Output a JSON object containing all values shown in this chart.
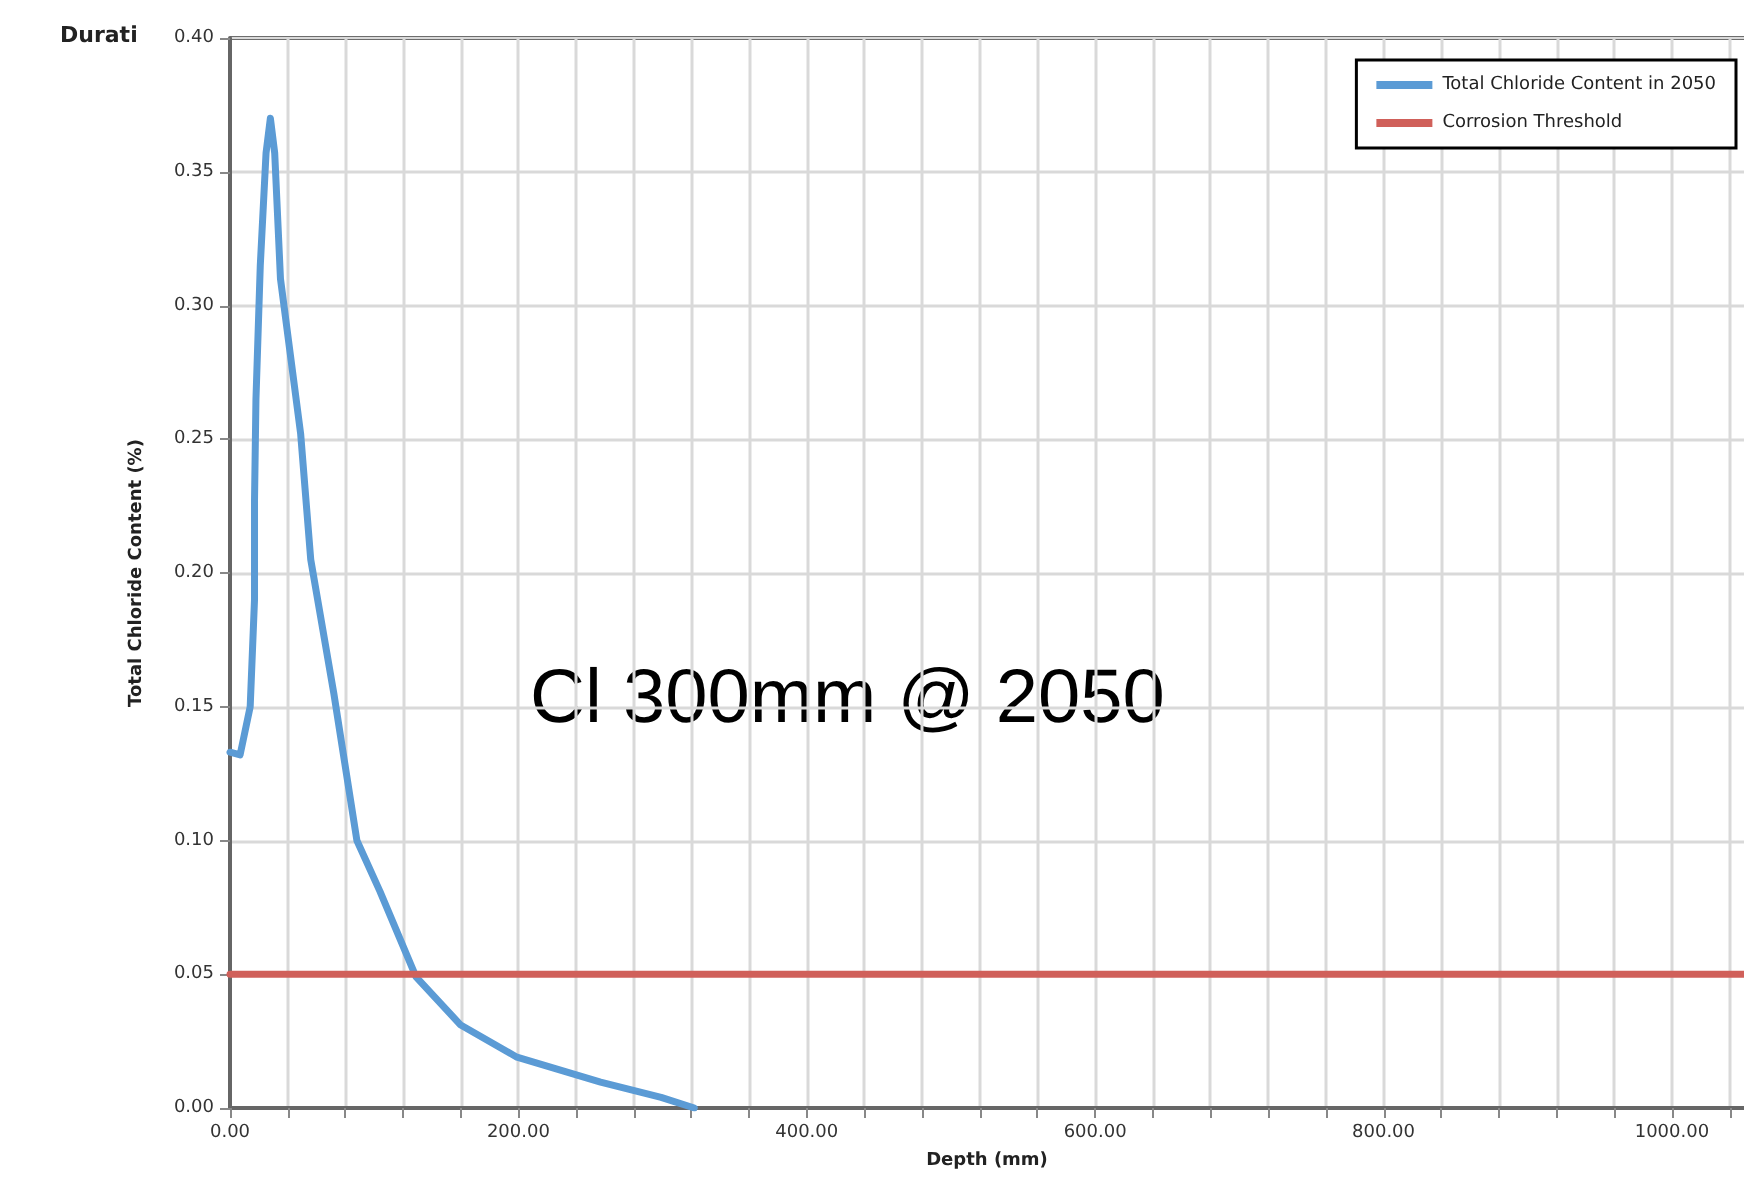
{
  "chart_data": {
    "type": "line",
    "xlabel": "Depth (mm)",
    "ylabel": "Total Chloride Content (%)",
    "xlim": [
      0,
      1050
    ],
    "xticks": [
      {
        "value": 0,
        "label": "0.00"
      },
      {
        "value": 40,
        "label": null
      },
      {
        "value": 80,
        "label": null
      },
      {
        "value": 120,
        "label": null
      },
      {
        "value": 160,
        "label": null
      },
      {
        "value": 200,
        "label": "200.00"
      },
      {
        "value": 240,
        "label": null
      },
      {
        "value": 280,
        "label": null
      },
      {
        "value": 320,
        "label": null
      },
      {
        "value": 360,
        "label": null
      },
      {
        "value": 400,
        "label": "400.00"
      },
      {
        "value": 440,
        "label": null
      },
      {
        "value": 480,
        "label": null
      },
      {
        "value": 520,
        "label": null
      },
      {
        "value": 560,
        "label": null
      },
      {
        "value": 600,
        "label": "600.00"
      },
      {
        "value": 640,
        "label": null
      },
      {
        "value": 680,
        "label": null
      },
      {
        "value": 720,
        "label": null
      },
      {
        "value": 760,
        "label": null
      },
      {
        "value": 800,
        "label": "800.00"
      },
      {
        "value": 840,
        "label": null
      },
      {
        "value": 880,
        "label": null
      },
      {
        "value": 920,
        "label": null
      },
      {
        "value": 960,
        "label": null
      },
      {
        "value": 1000,
        "label": "1000.00"
      },
      {
        "value": 1040,
        "label": null
      }
    ],
    "ylim": [
      0,
      0.4
    ],
    "yticks": [
      {
        "value": 0,
        "label": "0.00"
      },
      {
        "value": 0.05,
        "label": "0.05"
      },
      {
        "value": 0.1,
        "label": "0.10"
      },
      {
        "value": 0.15,
        "label": "0.15"
      },
      {
        "value": 0.2,
        "label": "0.20"
      },
      {
        "value": 0.25,
        "label": "0.25"
      },
      {
        "value": 0.3,
        "label": "0.30"
      },
      {
        "value": 0.35,
        "label": "0.35"
      },
      {
        "value": 0.4,
        "label": "0.40"
      }
    ],
    "grid": true,
    "legend": "top right",
    "marker": "none",
    "line_style": "solid",
    "series": [
      {
        "name": "Total Chloride Content in 2050",
        "color": "#5b9bd5",
        "x": [
          0,
          7,
          14,
          17,
          17,
          18,
          21,
          25,
          28,
          31,
          35,
          49,
          56,
          72,
          88,
          104,
          129,
          160,
          199,
          257,
          299,
          322
        ],
        "values": [
          0.133,
          0.132,
          0.15,
          0.19,
          0.227,
          0.265,
          0.315,
          0.357,
          0.37,
          0.357,
          0.31,
          0.252,
          0.205,
          0.155,
          0.1,
          0.081,
          0.049,
          0.031,
          0.019,
          0.0097,
          0.004,
          0
        ]
      },
      {
        "name": "Corrosion Threshold",
        "color": "#d0605a",
        "x": [
          0,
          1050
        ],
        "values": [
          0.05,
          0.05
        ]
      }
    ],
    "annotations": [
      "Durati",
      "Cl 300mm @ 2050"
    ]
  }
}
